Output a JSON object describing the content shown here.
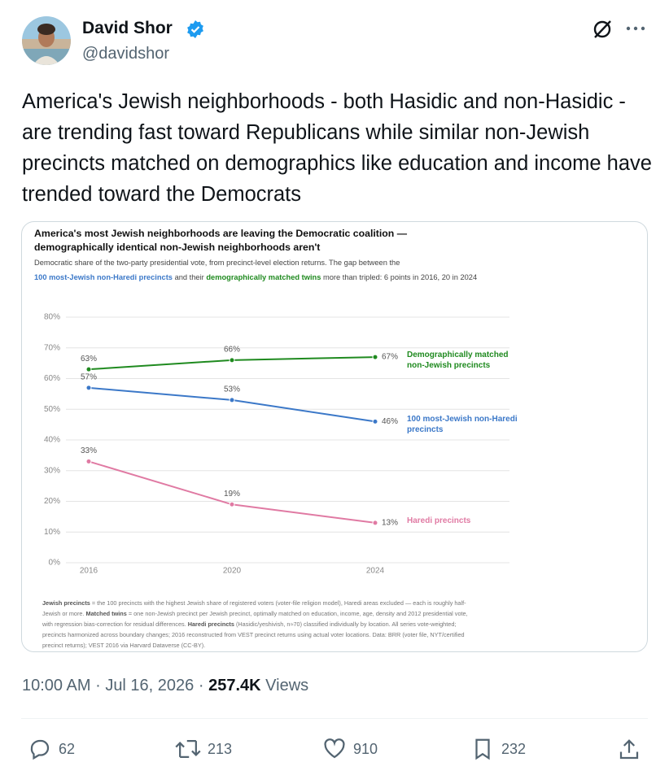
{
  "tweet": {
    "author": {
      "name": "David Shor",
      "handle": "@davidshor"
    },
    "text": "America's Jewish neighborhoods - both Hasidic and non-Hasidic - are trending fast toward Republicans while similar non-Jewish precincts matched on demographics like education and income have trended toward the Democrats",
    "time": "10:00 AM",
    "separator": "·",
    "date": "Jul 16, 2026",
    "views": "257.4K",
    "views_label": "Views",
    "actions": {
      "replies": 62,
      "reposts": 213,
      "likes": 910,
      "bookmarks": 232
    }
  },
  "chart_data": {
    "type": "line",
    "title": [
      "America's most Jewish neighborhoods are leaving the Democratic coalition —",
      "demographically identical non-Jewish neighborhoods aren't"
    ],
    "subtitle": [
      [
        {
          "text": "Democratic share of the two-party presidential vote, from precinct-level election returns. The gap between the"
        }
      ],
      [
        {
          "text": "100 most-Jewish non-Haredi precincts",
          "color": "#3b78c8"
        },
        {
          "text": " and their "
        },
        {
          "text": "demographically matched twins",
          "color": "#1f8a1f"
        },
        {
          "text": " more than tripled: 6 points in 2016, 20 in 2024"
        }
      ]
    ],
    "categories": [
      "2016",
      "2020",
      "2024"
    ],
    "ylim": [
      0,
      80
    ],
    "yticks": [
      {
        "value": 0,
        "label": "0%"
      },
      {
        "value": 10,
        "label": "10%"
      },
      {
        "value": 20,
        "label": "20%"
      },
      {
        "value": 30,
        "label": "30%"
      },
      {
        "value": 40,
        "label": "40%"
      },
      {
        "value": 50,
        "label": "50%"
      },
      {
        "value": 60,
        "label": "60%"
      },
      {
        "value": 70,
        "label": "70%"
      },
      {
        "value": 80,
        "label": "80%"
      }
    ],
    "grid": true,
    "series": [
      {
        "name": "Demographically matched non-Jewish precincts",
        "color": "#1f8a1f",
        "values": [
          63,
          66,
          67
        ],
        "value_labels": [
          "63%",
          "66%",
          "67%"
        ]
      },
      {
        "name": "100 most-Jewish non-Haredi precincts",
        "color": "#3b78c8",
        "values": [
          57,
          53,
          46
        ],
        "value_labels": [
          "57%",
          "53%",
          "46%"
        ]
      },
      {
        "name": "Haredi precincts",
        "color": "#e07aa3",
        "values": [
          33,
          19,
          13
        ],
        "value_labels": [
          "33%",
          "19%",
          "13%"
        ]
      }
    ],
    "footnote": [
      {
        "text": "Jewish precincts",
        "bold": true
      },
      {
        "text": " = the 100 precincts with the highest Jewish share of registered voters (voter-file religion model), Haredi areas excluded — each is roughly half-Jewish or more.  "
      },
      {
        "text": "Matched twins",
        "bold": true
      },
      {
        "text": " = one non-Jewish precinct per Jewish precinct, optimally matched on education, income, age, density and 2012 presidential vote, with regression bias-correction for residual differences.  "
      },
      {
        "text": "Haredi precincts",
        "bold": true
      },
      {
        "text": " (Hasidic/yeshivish, n≈70) classified individually by location.  All series vote-weighted; precincts harmonized across boundary changes; 2016 reconstructed from VEST precinct returns using actual voter locations.  Data: BRR (voter file, NYT/certified precinct returns); VEST 2016 via Harvard Dataverse (CC-BY)."
      }
    ]
  }
}
